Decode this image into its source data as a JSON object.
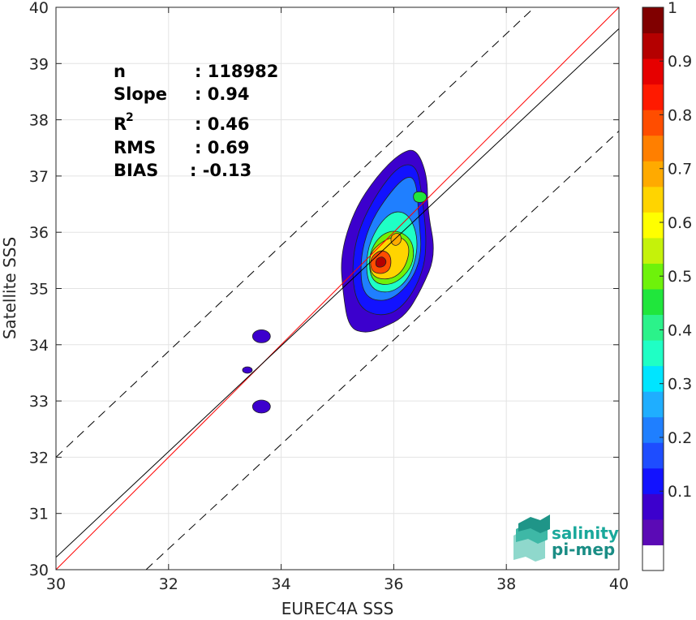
{
  "chart_data": {
    "type": "scatter",
    "xlabel": "EUREC4A SSS",
    "ylabel": "Satellite SSS",
    "xlim": [
      30,
      40
    ],
    "ylim": [
      30,
      40
    ],
    "x_ticks": [
      "30",
      "32",
      "34",
      "36",
      "38",
      "40"
    ],
    "y_ticks": [
      "30",
      "31",
      "32",
      "33",
      "34",
      "35",
      "36",
      "37",
      "38",
      "39",
      "40"
    ],
    "grid": true,
    "stats": [
      {
        "label": "n",
        "value": ": 118982"
      },
      {
        "label": "Slope",
        "value": ": 0.94"
      },
      {
        "label": "R",
        "sup": "2",
        "value": ": 0.46"
      },
      {
        "label": "RMS",
        "value": ": 0.69"
      },
      {
        "label": "BIAS",
        "value": ": -0.13"
      }
    ],
    "lines": [
      {
        "role": "identity",
        "color": "#ff0000",
        "points": [
          [
            30,
            30
          ],
          [
            40,
            40
          ]
        ]
      },
      {
        "role": "regression",
        "color": "#000000",
        "points": [
          [
            30,
            30.22
          ],
          [
            40,
            39.62
          ]
        ]
      },
      {
        "role": "upper-bound",
        "color": "#000000",
        "dash": true,
        "points": [
          [
            30,
            32.0
          ],
          [
            38.5,
            40.0
          ]
        ]
      },
      {
        "role": "lower-bound",
        "color": "#000000",
        "dash": true,
        "points": [
          [
            31.6,
            30.0
          ],
          [
            40,
            37.8
          ]
        ]
      }
    ],
    "density_contours": [
      {
        "level": 0.05,
        "points": [
          [
            35.2,
            34.3
          ],
          [
            35.1,
            34.9
          ],
          [
            35.05,
            35.6
          ],
          [
            35.3,
            36.4
          ],
          [
            35.7,
            37.0
          ],
          [
            36.1,
            37.4
          ],
          [
            36.4,
            37.5
          ],
          [
            36.6,
            37.0
          ],
          [
            36.6,
            36.4
          ],
          [
            36.75,
            35.6
          ],
          [
            36.5,
            35.0
          ],
          [
            36.2,
            34.5
          ],
          [
            35.8,
            34.3
          ],
          [
            35.5,
            34.2
          ]
        ]
      },
      {
        "level": 0.1,
        "points": [
          [
            35.35,
            34.7
          ],
          [
            35.25,
            35.3
          ],
          [
            35.35,
            36.0
          ],
          [
            35.7,
            36.7
          ],
          [
            36.1,
            37.2
          ],
          [
            36.4,
            37.2
          ],
          [
            36.5,
            36.7
          ],
          [
            36.6,
            35.7
          ],
          [
            36.45,
            35.1
          ],
          [
            36.1,
            34.6
          ],
          [
            35.7,
            34.5
          ]
        ]
      },
      {
        "level": 0.2,
        "points": [
          [
            35.45,
            34.85
          ],
          [
            35.4,
            35.5
          ],
          [
            35.55,
            36.1
          ],
          [
            35.85,
            36.6
          ],
          [
            36.2,
            37.0
          ],
          [
            36.4,
            36.95
          ],
          [
            36.45,
            36.2
          ],
          [
            36.5,
            35.6
          ],
          [
            36.3,
            35.1
          ],
          [
            35.9,
            34.75
          ]
        ]
      },
      {
        "level": 0.35,
        "points": [
          [
            35.55,
            35.0
          ],
          [
            35.5,
            35.6
          ],
          [
            35.7,
            36.1
          ],
          [
            36.0,
            36.4
          ],
          [
            36.3,
            36.3
          ],
          [
            36.45,
            35.8
          ],
          [
            36.3,
            35.2
          ],
          [
            35.95,
            34.9
          ]
        ]
      },
      {
        "level": 0.5,
        "points": [
          [
            35.6,
            35.1
          ],
          [
            35.55,
            35.6
          ],
          [
            35.75,
            35.95
          ],
          [
            36.05,
            36.05
          ],
          [
            36.35,
            35.85
          ],
          [
            36.35,
            35.4
          ],
          [
            36.0,
            35.05
          ]
        ]
      },
      {
        "level": 0.65,
        "points": [
          [
            35.6,
            35.2
          ],
          [
            35.55,
            35.6
          ],
          [
            35.8,
            35.85
          ],
          [
            36.1,
            35.95
          ],
          [
            36.3,
            35.75
          ],
          [
            36.2,
            35.35
          ],
          [
            35.95,
            35.15
          ]
        ]
      },
      {
        "level": 0.8,
        "points": [
          [
            35.6,
            35.3
          ],
          [
            35.58,
            35.55
          ],
          [
            35.78,
            35.7
          ],
          [
            35.95,
            35.6
          ],
          [
            35.95,
            35.35
          ],
          [
            35.8,
            35.25
          ]
        ]
      },
      {
        "level": 0.9,
        "points": [
          [
            35.68,
            35.38
          ],
          [
            35.68,
            35.52
          ],
          [
            35.8,
            35.58
          ],
          [
            35.88,
            35.48
          ],
          [
            35.82,
            35.38
          ]
        ]
      },
      {
        "level": 0.55,
        "points": [
          [
            36.35,
            36.55
          ],
          [
            36.35,
            36.72
          ],
          [
            36.55,
            36.72
          ],
          [
            36.6,
            36.6
          ],
          [
            36.5,
            36.52
          ]
        ]
      },
      {
        "level": 0.75,
        "points": [
          [
            35.95,
            35.8
          ],
          [
            35.95,
            35.95
          ],
          [
            36.1,
            36.0
          ],
          [
            36.15,
            35.85
          ],
          [
            36.05,
            35.75
          ]
        ]
      }
    ],
    "outlier_blobs": [
      {
        "level": 0.05,
        "x": 33.65,
        "y": 34.15
      },
      {
        "level": 0.05,
        "x": 33.4,
        "y": 33.55
      },
      {
        "level": 0.05,
        "x": 33.65,
        "y": 32.9
      }
    ],
    "colorbar": {
      "ticks": [
        "0.1",
        "0.2",
        "0.3",
        "0.4",
        "0.5",
        "0.6",
        "0.7",
        "0.8",
        "0.9",
        "1"
      ],
      "colors": [
        "#ffffff",
        "#5b0ab5",
        "#3c00cd",
        "#1212ff",
        "#1e4dff",
        "#1f7fff",
        "#1faeff",
        "#00e5ff",
        "#1fffc5",
        "#2bf28a",
        "#20e63c",
        "#6ef20a",
        "#c5f20a",
        "#ffff00",
        "#ffd400",
        "#ffaa00",
        "#ff7f00",
        "#ff4d00",
        "#ff1a00",
        "#e60000",
        "#b40000",
        "#800000"
      ]
    },
    "level_colors": {
      "0.05": "#3c00cd",
      "0.1": "#1212ff",
      "0.2": "#1f7fff",
      "0.35": "#1fffc5",
      "0.5": "#6ef20a",
      "0.55": "#20e63c",
      "0.65": "#ffd400",
      "0.75": "#ffaa00",
      "0.8": "#ff4d00",
      "0.9": "#b40000"
    }
  },
  "logo": {
    "line1": "salinity",
    "line2": "pi-mep"
  }
}
